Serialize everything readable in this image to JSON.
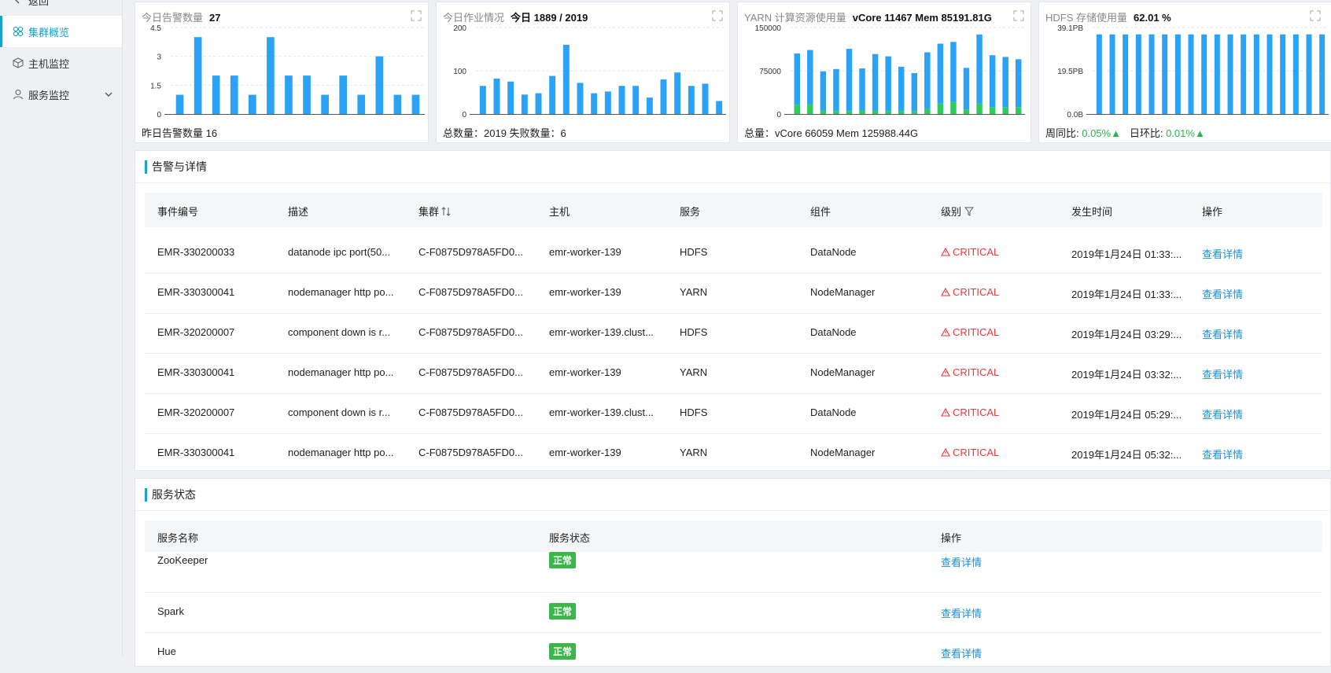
{
  "sidebar": {
    "back_label": "返回",
    "items": [
      {
        "label": "集群概览",
        "icon": "cluster-icon"
      },
      {
        "label": "主机监控",
        "icon": "host-icon"
      },
      {
        "label": "服务监控",
        "icon": "user-icon"
      }
    ]
  },
  "cards": [
    {
      "label": "今日告警数量",
      "value": "27",
      "footer": "昨日告警数量 16",
      "chart_data": {
        "type": "bar",
        "ylim": [
          0,
          4.5
        ],
        "yticks": [
          "4.5",
          "3",
          "1.5",
          "0"
        ],
        "values": [
          1,
          4,
          2,
          2,
          1,
          4,
          2,
          2,
          1,
          2,
          1,
          3,
          1,
          1
        ],
        "color": "#2aa3f7"
      }
    },
    {
      "label": "今日作业情况",
      "value": "今日 1889 / 2019",
      "footer": "总数量：2019 失败数量：6",
      "chart_data": {
        "type": "bar",
        "ylim": [
          0,
          200
        ],
        "yticks": [
          "200",
          "100",
          "0"
        ],
        "values": [
          65,
          82,
          75,
          45,
          48,
          88,
          160,
          72,
          48,
          52,
          65,
          65,
          38,
          80,
          96,
          65,
          70,
          30
        ],
        "color": "#2aa3f7"
      }
    },
    {
      "label": "YARN 计算资源使用量",
      "value": "vCore 11467 Mem 85191.81G",
      "footer": "总量：vCore 66059 Mem 125988.44G",
      "chart_data": {
        "type": "bar",
        "stacked": true,
        "ylim": [
          0,
          150000
        ],
        "yticks": [
          "150000",
          "75000",
          "0"
        ],
        "series": [
          {
            "values": [
              16000,
              17000,
              6000,
              5000,
              5000,
              6000,
              6000,
              5000,
              5000,
              5000,
              9000,
              18000,
              21000,
              8000,
              18000,
              12000,
              12000,
              12000
            ],
            "color": "#2ecc5c"
          },
          {
            "values": [
              89000,
              94000,
              68000,
              73000,
              108000,
              73000,
              98000,
              95000,
              77000,
              66000,
              98000,
              104000,
              104000,
              72000,
              120000,
              90000,
              87000,
              83000
            ],
            "color": "#2aa3f7"
          }
        ]
      }
    },
    {
      "label": "HDFS 存储使用量",
      "value": "62.01 %",
      "footer_prefix_week": "周同比:",
      "footer_week": "0.05%",
      "footer_prefix_day": "日环比:",
      "footer_day": "0.01%",
      "chart_data": {
        "type": "bar",
        "ylim": [
          0,
          39.1
        ],
        "yticks": [
          "39.1PB",
          "19.5PB",
          "0.0B"
        ],
        "values": [
          36,
          36,
          36,
          36,
          36,
          36,
          36,
          36,
          36,
          36,
          36,
          36,
          36,
          36,
          36,
          36,
          36,
          36
        ],
        "color": "#2aa3f7"
      }
    }
  ],
  "alerts": {
    "title": "告警与详情",
    "columns": [
      "事件编号",
      "描述",
      "集群",
      "主机",
      "服务",
      "组件",
      "级别",
      "发生时间",
      "操作"
    ],
    "rows": [
      [
        "EMR-330200033",
        "datanode ipc port(50...",
        "C-F0875D978A5FD0...",
        "emr-worker-139",
        "HDFS",
        "DataNode",
        "CRITICAL",
        "2019年1月24日 01:33:...",
        "查看详情"
      ],
      [
        "EMR-330300041",
        "nodemanager http po...",
        "C-F0875D978A5FD0...",
        "emr-worker-139",
        "YARN",
        "NodeManager",
        "CRITICAL",
        "2019年1月24日 01:33:...",
        "查看详情"
      ],
      [
        "EMR-320200007",
        "component down is r...",
        "C-F0875D978A5FD0...",
        "emr-worker-139.clust...",
        "HDFS",
        "DataNode",
        "CRITICAL",
        "2019年1月24日 03:29:...",
        "查看详情"
      ],
      [
        "EMR-330300041",
        "nodemanager http po...",
        "C-F0875D978A5FD0...",
        "emr-worker-139",
        "YARN",
        "NodeManager",
        "CRITICAL",
        "2019年1月24日 03:32:...",
        "查看详情"
      ],
      [
        "EMR-320200007",
        "component down is r...",
        "C-F0875D978A5FD0...",
        "emr-worker-139.clust...",
        "HDFS",
        "DataNode",
        "CRITICAL",
        "2019年1月24日 05:29:...",
        "查看详情"
      ],
      [
        "EMR-330300041",
        "nodemanager http po...",
        "C-F0875D978A5FD0...",
        "emr-worker-139",
        "YARN",
        "NodeManager",
        "CRITICAL",
        "2019年1月24日 05:32:...",
        "查看详情"
      ]
    ]
  },
  "services": {
    "title": "服务状态",
    "columns": [
      "服务名称",
      "服务状态",
      "操作"
    ],
    "rows": [
      [
        "ZooKeeper",
        "正常",
        "查看详情"
      ],
      [
        "Spark",
        "正常",
        "查看详情"
      ],
      [
        "Hue",
        "正常",
        "查看详情"
      ]
    ]
  },
  "colors": {
    "accent": "#1aa3c9",
    "critical": "#e8393b",
    "link": "#1a8fd8",
    "ok": "#3cb64a",
    "bar": "#2aa3f7",
    "bar_green": "#2ecc5c"
  }
}
